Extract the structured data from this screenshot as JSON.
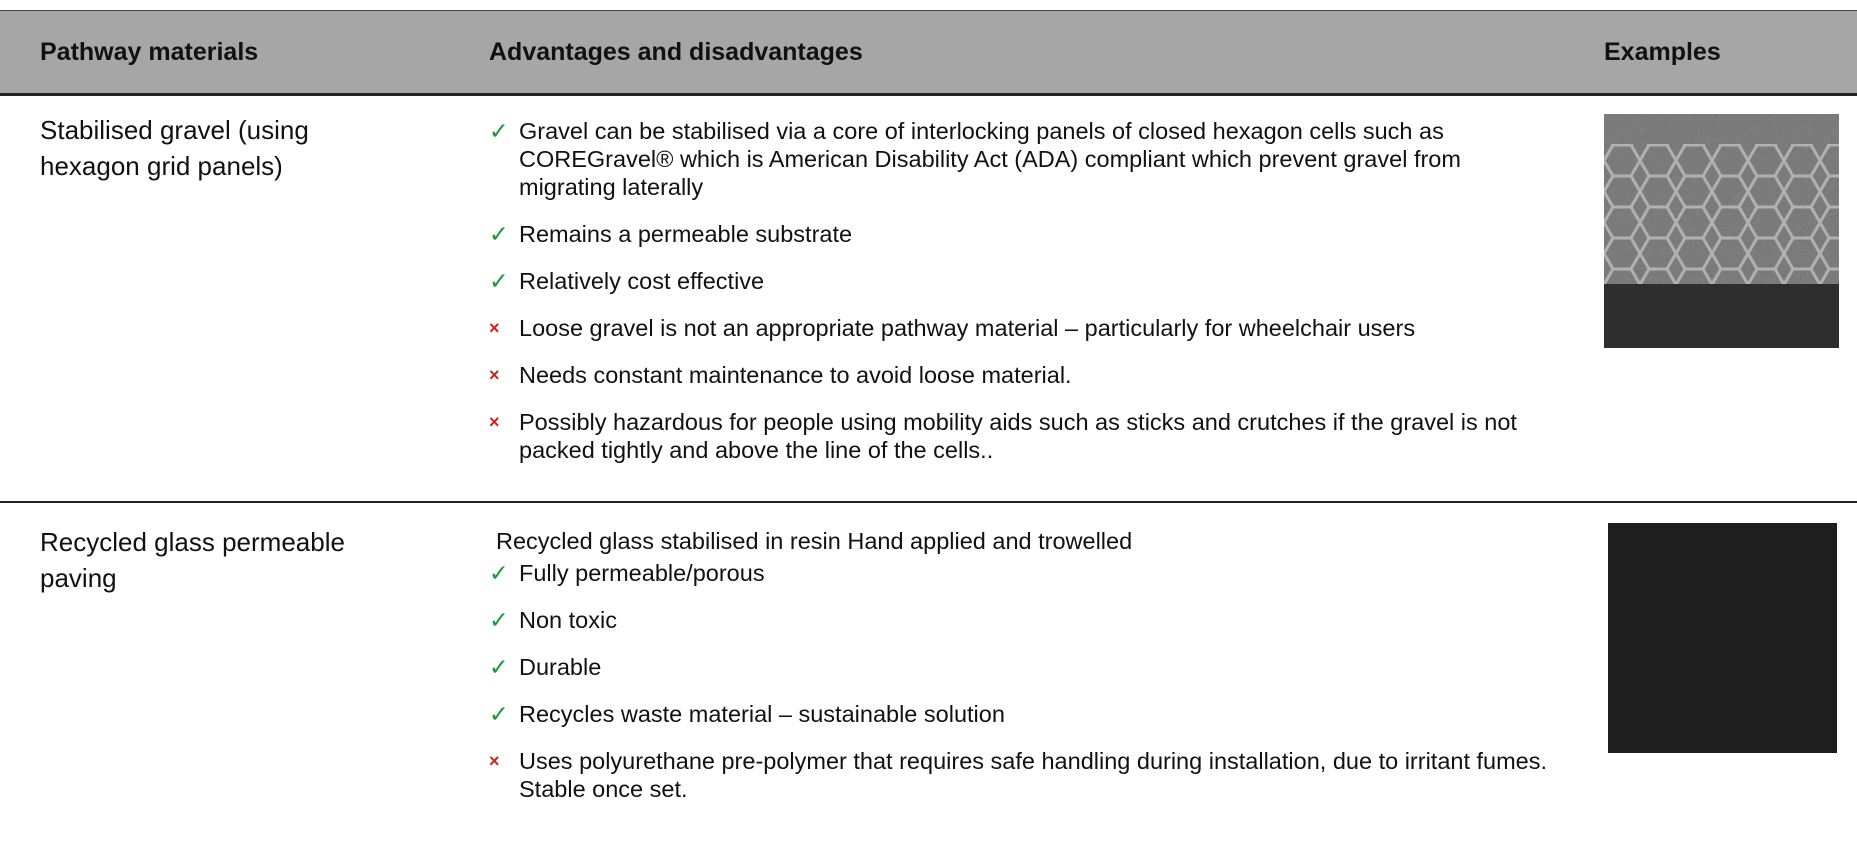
{
  "table": {
    "headers": [
      "Pathway materials",
      "Advantages and disadvantages",
      "Examples"
    ],
    "rows": [
      {
        "material": "Stabilised gravel (using hexagon grid panels)",
        "items": [
          {
            "symbol": "✓",
            "text": "Gravel can be stabilised via a core of interlocking panels of closed hexagon cells such as COREGravel® which is American Disability Act (ADA) compliant which prevent gravel from migrating laterally"
          },
          {
            "symbol": "✓",
            "text": "Remains a permeable substrate"
          },
          {
            "symbol": "✓",
            "text": "Relatively cost effective"
          },
          {
            "symbol": "×",
            "text": "Loose gravel is not an appropriate pathway material – particularly for wheelchair users"
          },
          {
            "symbol": "×",
            "text": "Needs constant maintenance to avoid loose material."
          },
          {
            "symbol": "×",
            "text": "Possibly hazardous for people using mobility aids such as sticks and crutches if the gravel is not packed tightly and above the line of the cells.."
          }
        ]
      },
      {
        "material": "Recycled glass permeable paving",
        "intro": "Recycled glass stabilised in resin Hand applied and trowelled",
        "items": [
          {
            "symbol": "✓",
            "text": "Fully permeable/porous"
          },
          {
            "symbol": "✓",
            "text": "Non toxic"
          },
          {
            "symbol": "✓",
            "text": "Durable"
          },
          {
            "symbol": "✓",
            "text": "Recycles waste material – sustainable solution"
          },
          {
            "symbol": "×",
            "text": "Uses polyurethane pre-polymer that requires safe handling during installation, due to irritant fumes.  Stable once set."
          }
        ]
      }
    ]
  }
}
